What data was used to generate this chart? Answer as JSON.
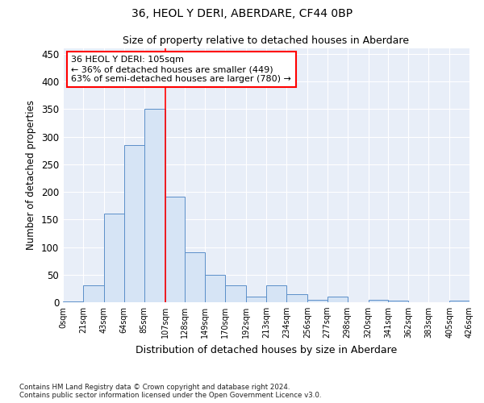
{
  "title": "36, HEOL Y DERI, ABERDARE, CF44 0BP",
  "subtitle": "Size of property relative to detached houses in Aberdare",
  "xlabel": "Distribution of detached houses by size in Aberdare",
  "ylabel": "Number of detached properties",
  "bar_color": "#d6e4f5",
  "bar_edge_color": "#5b8fc9",
  "background_color": "#e8eef8",
  "grid_color": "#ffffff",
  "annotation_text": "36 HEOL Y DERI: 105sqm\n← 36% of detached houses are smaller (449)\n63% of semi-detached houses are larger (780) →",
  "vline_x": 107,
  "vline_color": "red",
  "footer": "Contains HM Land Registry data © Crown copyright and database right 2024.\nContains public sector information licensed under the Open Government Licence v3.0.",
  "bin_edges": [
    0,
    21,
    43,
    64,
    85,
    107,
    128,
    149,
    170,
    192,
    213,
    234,
    256,
    277,
    298,
    320,
    341,
    362,
    383,
    405,
    426
  ],
  "bar_heights": [
    2,
    30,
    160,
    285,
    351,
    192,
    90,
    50,
    30,
    10,
    30,
    15,
    5,
    10,
    0,
    5,
    3,
    0,
    0,
    3
  ],
  "ylim": [
    0,
    460
  ],
  "yticks": [
    0,
    50,
    100,
    150,
    200,
    250,
    300,
    350,
    400,
    450
  ],
  "figsize": [
    6.0,
    5.0
  ],
  "dpi": 100
}
